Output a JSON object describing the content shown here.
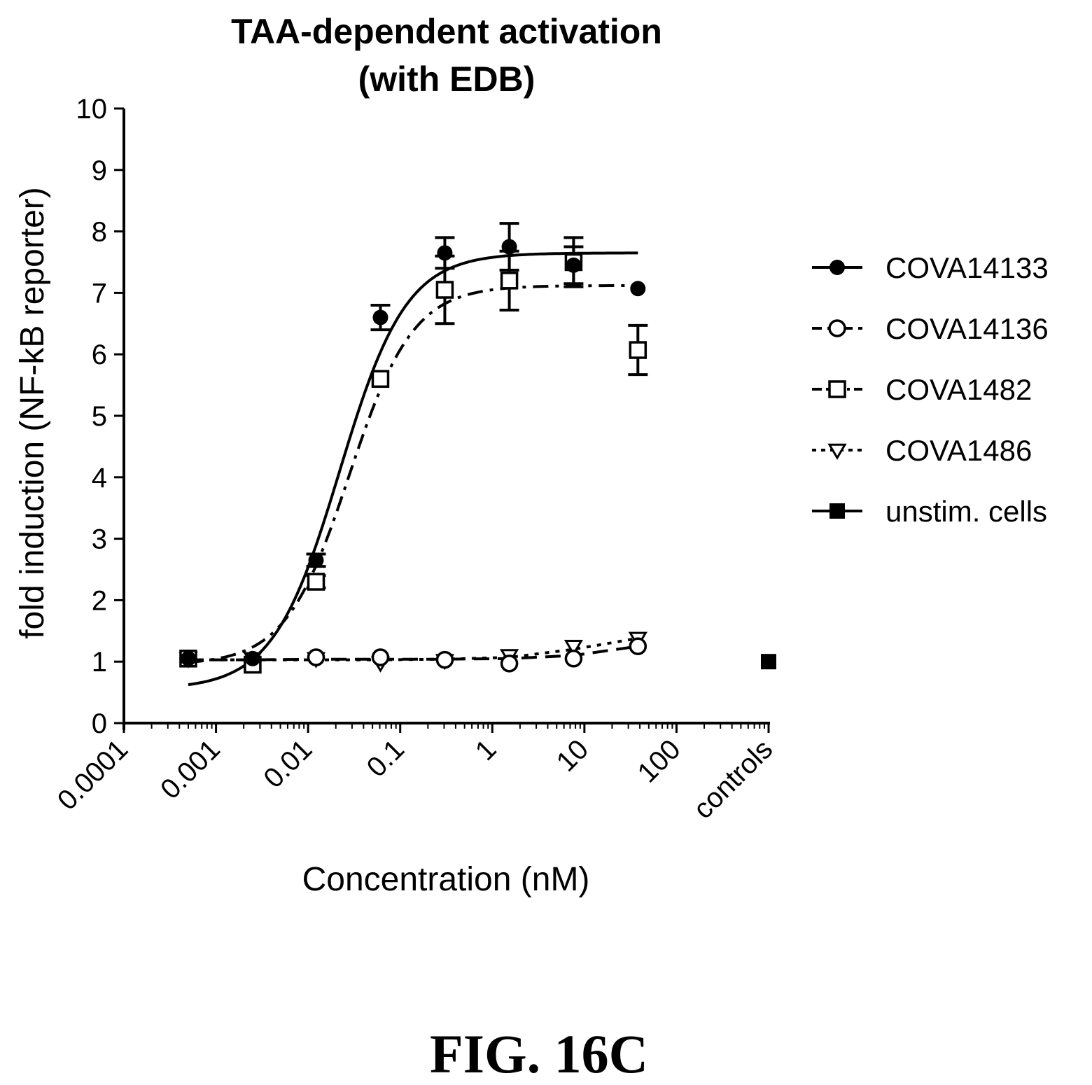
{
  "figure_label": "FIG. 16C",
  "chart_data": {
    "type": "scatter",
    "title_lines": [
      "TAA-dependent activation",
      "(with EDB)"
    ],
    "xlabel": "Concentration (nM)",
    "ylabel": "fold induction (NF-kB reporter)",
    "x_scale": "log",
    "xlim": [
      0.0001,
      1000
    ],
    "ylim": [
      0,
      10
    ],
    "y_ticks": [
      "0",
      "1",
      "2",
      "3",
      "4",
      "5",
      "6",
      "7",
      "8",
      "9",
      "10"
    ],
    "x_ticks": [
      "0.0001",
      "0.001",
      "0.01",
      "0.1",
      "1",
      "10",
      "100",
      "controls"
    ],
    "legend_position": "right",
    "grid": false,
    "series": [
      {
        "name": "COVA14133",
        "marker": "filled-circle",
        "line_style": "solid",
        "x": [
          0.0005,
          0.0025,
          0.0122,
          0.061,
          0.305,
          1.53,
          7.63,
          38.1
        ],
        "y": [
          1.05,
          1.05,
          2.65,
          6.6,
          7.65,
          7.75,
          7.45,
          7.07
        ],
        "error": [
          0,
          0,
          0.1,
          0.2,
          0.25,
          0.38,
          0.3,
          0
        ],
        "fit": {
          "bottom": 0.55,
          "top": 7.65,
          "ec50": 0.022,
          "hill": 1.2,
          "x_range": [
            0.0005,
            38.1
          ]
        }
      },
      {
        "name": "COVA14136",
        "marker": "open-circle",
        "line_style": "dashed",
        "x": [
          0.0005,
          0.0025,
          0.0122,
          0.061,
          0.305,
          1.53,
          7.63,
          38.1
        ],
        "y": [
          1.05,
          1.0,
          1.07,
          1.07,
          1.03,
          0.97,
          1.05,
          1.25
        ],
        "error": [
          0,
          0,
          0,
          0,
          0,
          0,
          0,
          0
        ],
        "fit": {
          "points_x": [
            0.0005,
            0.0025,
            0.0122,
            0.061,
            0.305,
            1.53,
            7.63,
            38.1
          ],
          "points_y": [
            1.03,
            1.03,
            1.04,
            1.04,
            1.04,
            1.05,
            1.1,
            1.25
          ]
        }
      },
      {
        "name": "COVA1482",
        "marker": "open-square",
        "line_style": "dash-dot",
        "x": [
          0.0005,
          0.0025,
          0.0122,
          0.061,
          0.305,
          1.53,
          7.63,
          38.1
        ],
        "y": [
          1.05,
          0.95,
          2.3,
          5.6,
          7.05,
          7.2,
          7.5,
          6.07
        ],
        "error": [
          0,
          0,
          0.1,
          0,
          0.55,
          0.48,
          0.4,
          0.4
        ],
        "fit": {
          "bottom": 0.95,
          "top": 7.12,
          "ec50": 0.028,
          "hill": 1.25,
          "x_range": [
            0.0005,
            38.1
          ]
        }
      },
      {
        "name": "COVA1486",
        "marker": "open-triangle-down",
        "line_style": "dotted",
        "x": [
          0.0005,
          0.0025,
          0.0122,
          0.061,
          0.305,
          1.53,
          7.63,
          38.1
        ],
        "y": [
          1.05,
          1.05,
          1.05,
          0.98,
          1.02,
          1.1,
          1.25,
          1.38
        ],
        "error": [
          0,
          0,
          0,
          0,
          0,
          0,
          0,
          0
        ],
        "fit": {
          "points_x": [
            0.0005,
            0.0025,
            0.0122,
            0.061,
            0.305,
            1.53,
            7.63,
            38.1
          ],
          "points_y": [
            1.03,
            1.03,
            1.03,
            1.03,
            1.04,
            1.07,
            1.2,
            1.38
          ]
        }
      },
      {
        "name": "unstim. cells",
        "marker": "filled-square",
        "line_style": "solid",
        "x": [
          "controls"
        ],
        "y": [
          1.0
        ],
        "error": [
          0
        ]
      }
    ]
  }
}
